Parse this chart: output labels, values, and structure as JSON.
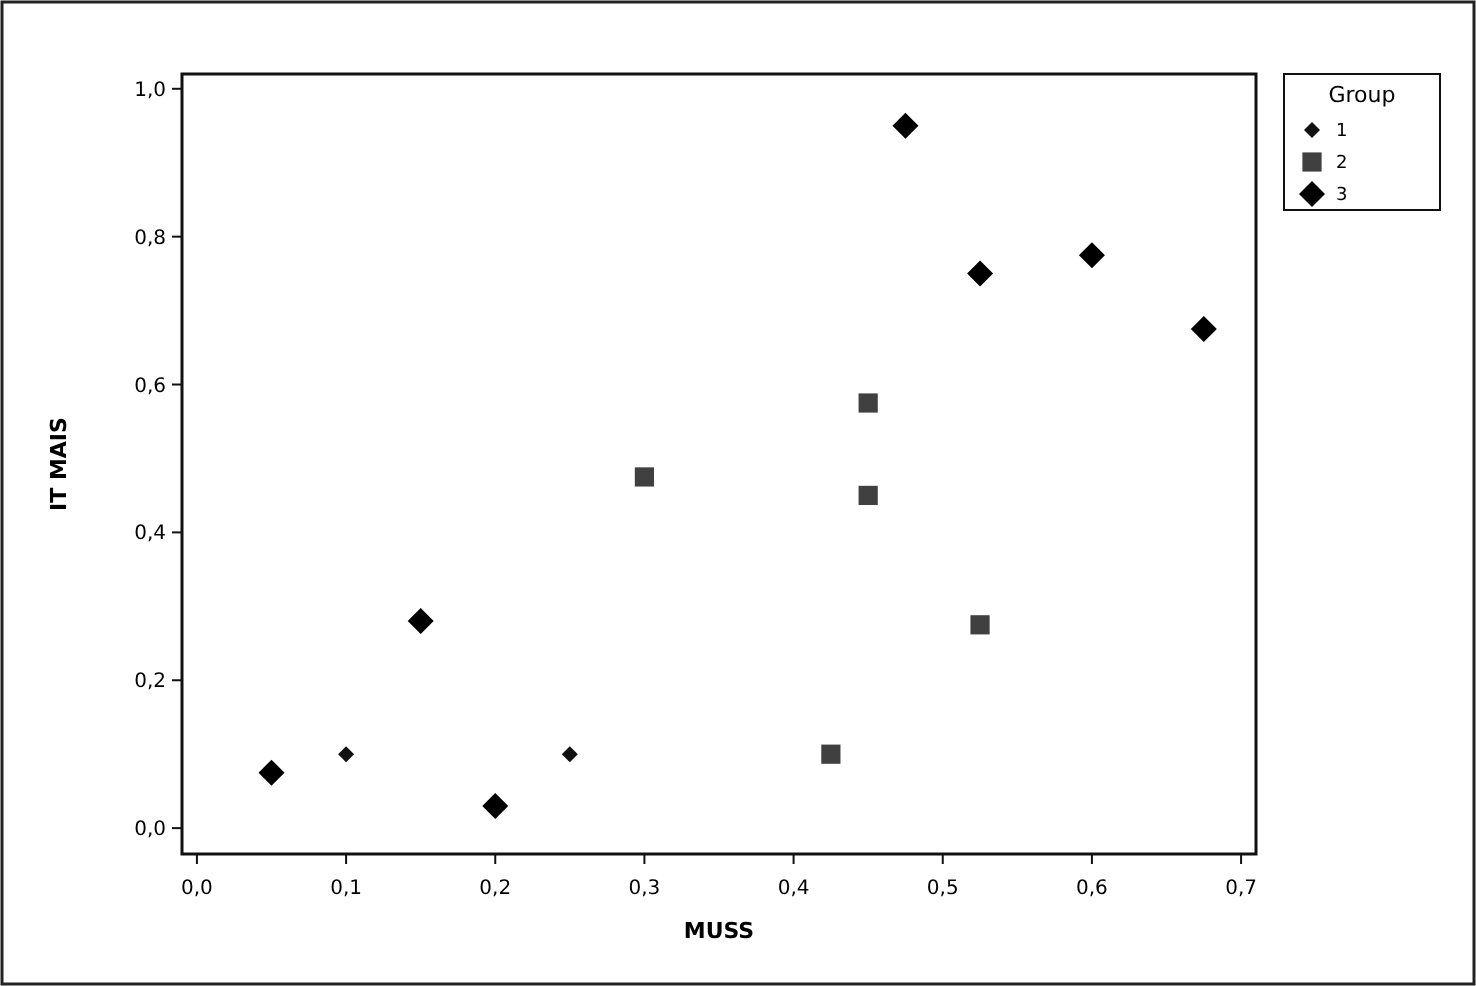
{
  "chart_data": {
    "type": "scatter",
    "xlabel": "MUSS",
    "ylabel": "IT MAIS",
    "legend_title": "Group",
    "legend": "top right",
    "xlim": [
      -0.01,
      0.71
    ],
    "ylim": [
      -0.035,
      1.02
    ],
    "xticks": [
      {
        "value": 0,
        "label": "0,0"
      },
      {
        "value": 0.1,
        "label": "0,1"
      },
      {
        "value": 0.2,
        "label": "0,2"
      },
      {
        "value": 0.3,
        "label": "0,3"
      },
      {
        "value": 0.4,
        "label": "0,4"
      },
      {
        "value": 0.5,
        "label": "0,5"
      },
      {
        "value": 0.6,
        "label": "0,6"
      },
      {
        "value": 0.7,
        "label": "0,7"
      }
    ],
    "yticks": [
      {
        "value": 0,
        "label": "0,0"
      },
      {
        "value": 0.2,
        "label": "0,2"
      },
      {
        "value": 0.4,
        "label": "0,4"
      },
      {
        "value": 0.6,
        "label": "0,6"
      },
      {
        "value": 0.8,
        "label": "0,8"
      },
      {
        "value": 1,
        "label": "1,0"
      }
    ],
    "series": [
      {
        "name": "1",
        "color": "#111111",
        "marker": "diamond",
        "x": [
          0.1,
          0.25
        ],
        "values": [
          0.1,
          0.1
        ]
      },
      {
        "name": "2",
        "color": "#404040",
        "marker": "square",
        "x": [
          0.3,
          0.45,
          0.45,
          0.525,
          0.425
        ],
        "values": [
          0.475,
          0.575,
          0.45,
          0.275,
          0.1
        ]
      },
      {
        "name": "3",
        "color": "#000000",
        "marker": "diamond",
        "x": [
          0.05,
          0.15,
          0.2,
          0.475,
          0.525,
          0.6,
          0.675
        ],
        "values": [
          0.075,
          0.28,
          0.03,
          0.95,
          0.75,
          0.775,
          0.675
        ]
      }
    ]
  }
}
